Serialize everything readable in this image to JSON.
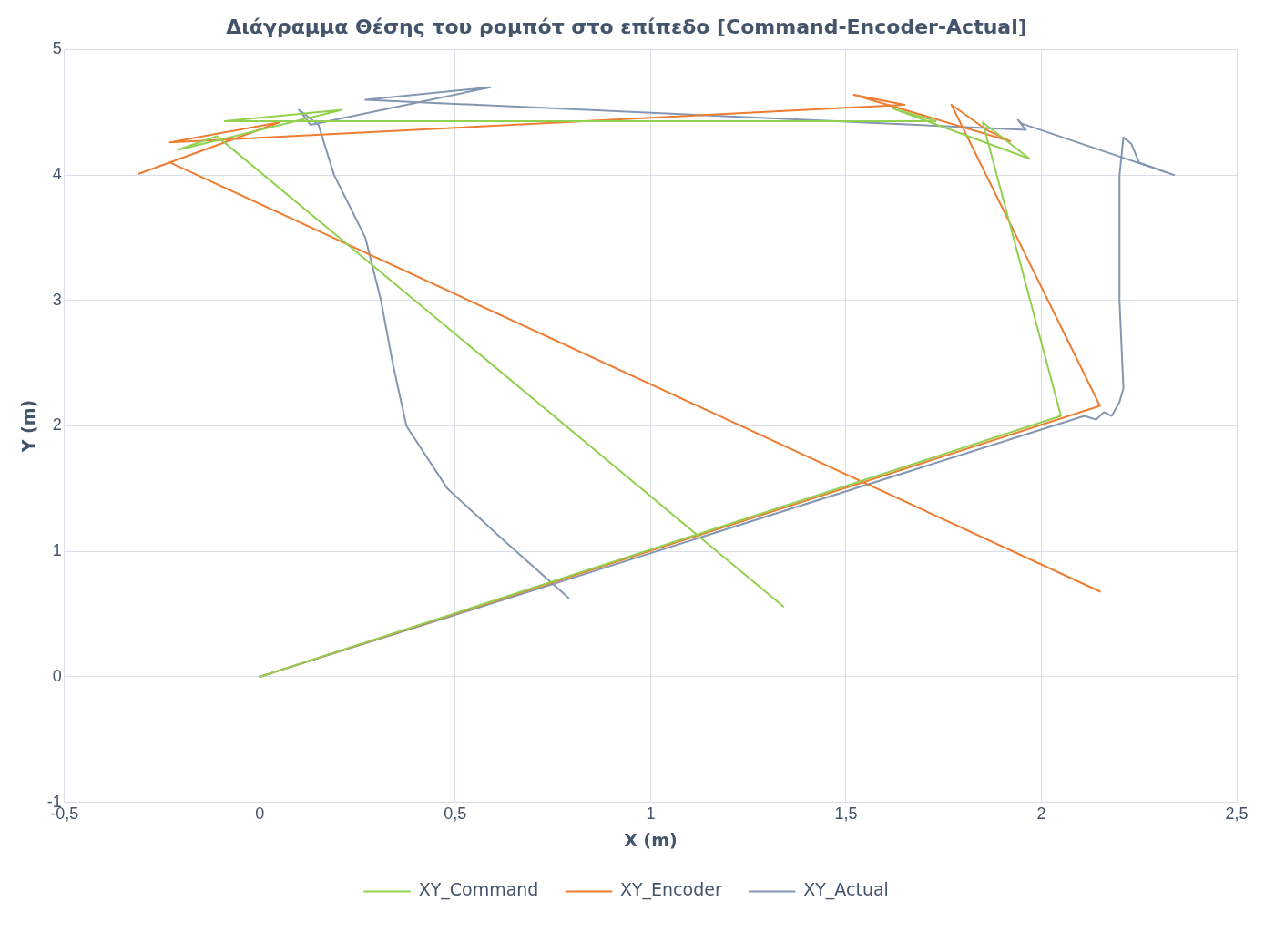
{
  "chart_data": {
    "type": "line",
    "title": "Διάγραμμα Θέσης του ρομπότ στο επίπεδο [Command-Encoder-Actual]",
    "xlabel": "X (m)",
    "ylabel": "Y (m)",
    "xlim": [
      -0.5,
      2.5
    ],
    "xticks": [
      {
        "value": -0.5,
        "label": "-0,5"
      },
      0,
      {
        "value": 0.5,
        "label": "0,5"
      },
      1,
      {
        "value": 1.5,
        "label": "1,5"
      },
      2,
      {
        "value": 2.5,
        "label": "2,5"
      }
    ],
    "ylim": [
      -1,
      5
    ],
    "yticks": [
      -1,
      0,
      1,
      2,
      3,
      4,
      5
    ],
    "grid": true,
    "legend": "bottom",
    "marker": "none",
    "line_style": "solid",
    "series": [
      {
        "name": "XY_Command",
        "color": "#92d050",
        "x": [
          0,
          2.05,
          1.85,
          1.97,
          1.62,
          1.73,
          -0.09,
          0.21,
          -0.21,
          -0.11,
          1.34
        ],
        "values": [
          0,
          2.08,
          4.42,
          4.13,
          4.53,
          4.43,
          4.43,
          4.52,
          4.2,
          4.31,
          0.56
        ]
      },
      {
        "name": "XY_Encoder",
        "color": "#ed7d31",
        "x": [
          0,
          2.15,
          1.77,
          1.86,
          1.92,
          1.52,
          1.65,
          -0.23,
          0.05,
          -0.31,
          -0.23,
          2.15
        ],
        "values": [
          0,
          2.16,
          4.56,
          4.36,
          4.27,
          4.64,
          4.56,
          4.26,
          4.42,
          4.01,
          4.1,
          0.68
        ]
      },
      {
        "name": "XY_Actual",
        "color": "#8497b0",
        "x": [
          0,
          2.11,
          2.14,
          2.16,
          2.18,
          2.2,
          2.21,
          2.2,
          2.2,
          2.21,
          2.23,
          2.25,
          2.34,
          1.95,
          1.94,
          1.96,
          0.27,
          0.59,
          0.13,
          0.1,
          0.15,
          0.19,
          0.27,
          0.31,
          0.34,
          0.375,
          0.48,
          0.62,
          0.79
        ],
        "values": [
          0,
          2.08,
          2.05,
          2.11,
          2.08,
          2.19,
          2.3,
          3,
          4,
          4.3,
          4.25,
          4.1,
          4,
          4.41,
          4.44,
          4.36,
          4.6,
          4.7,
          4.4,
          4.52,
          4.4,
          4,
          3.5,
          3,
          2.5,
          2,
          1.5,
          1.1,
          0.63
        ]
      }
    ]
  }
}
